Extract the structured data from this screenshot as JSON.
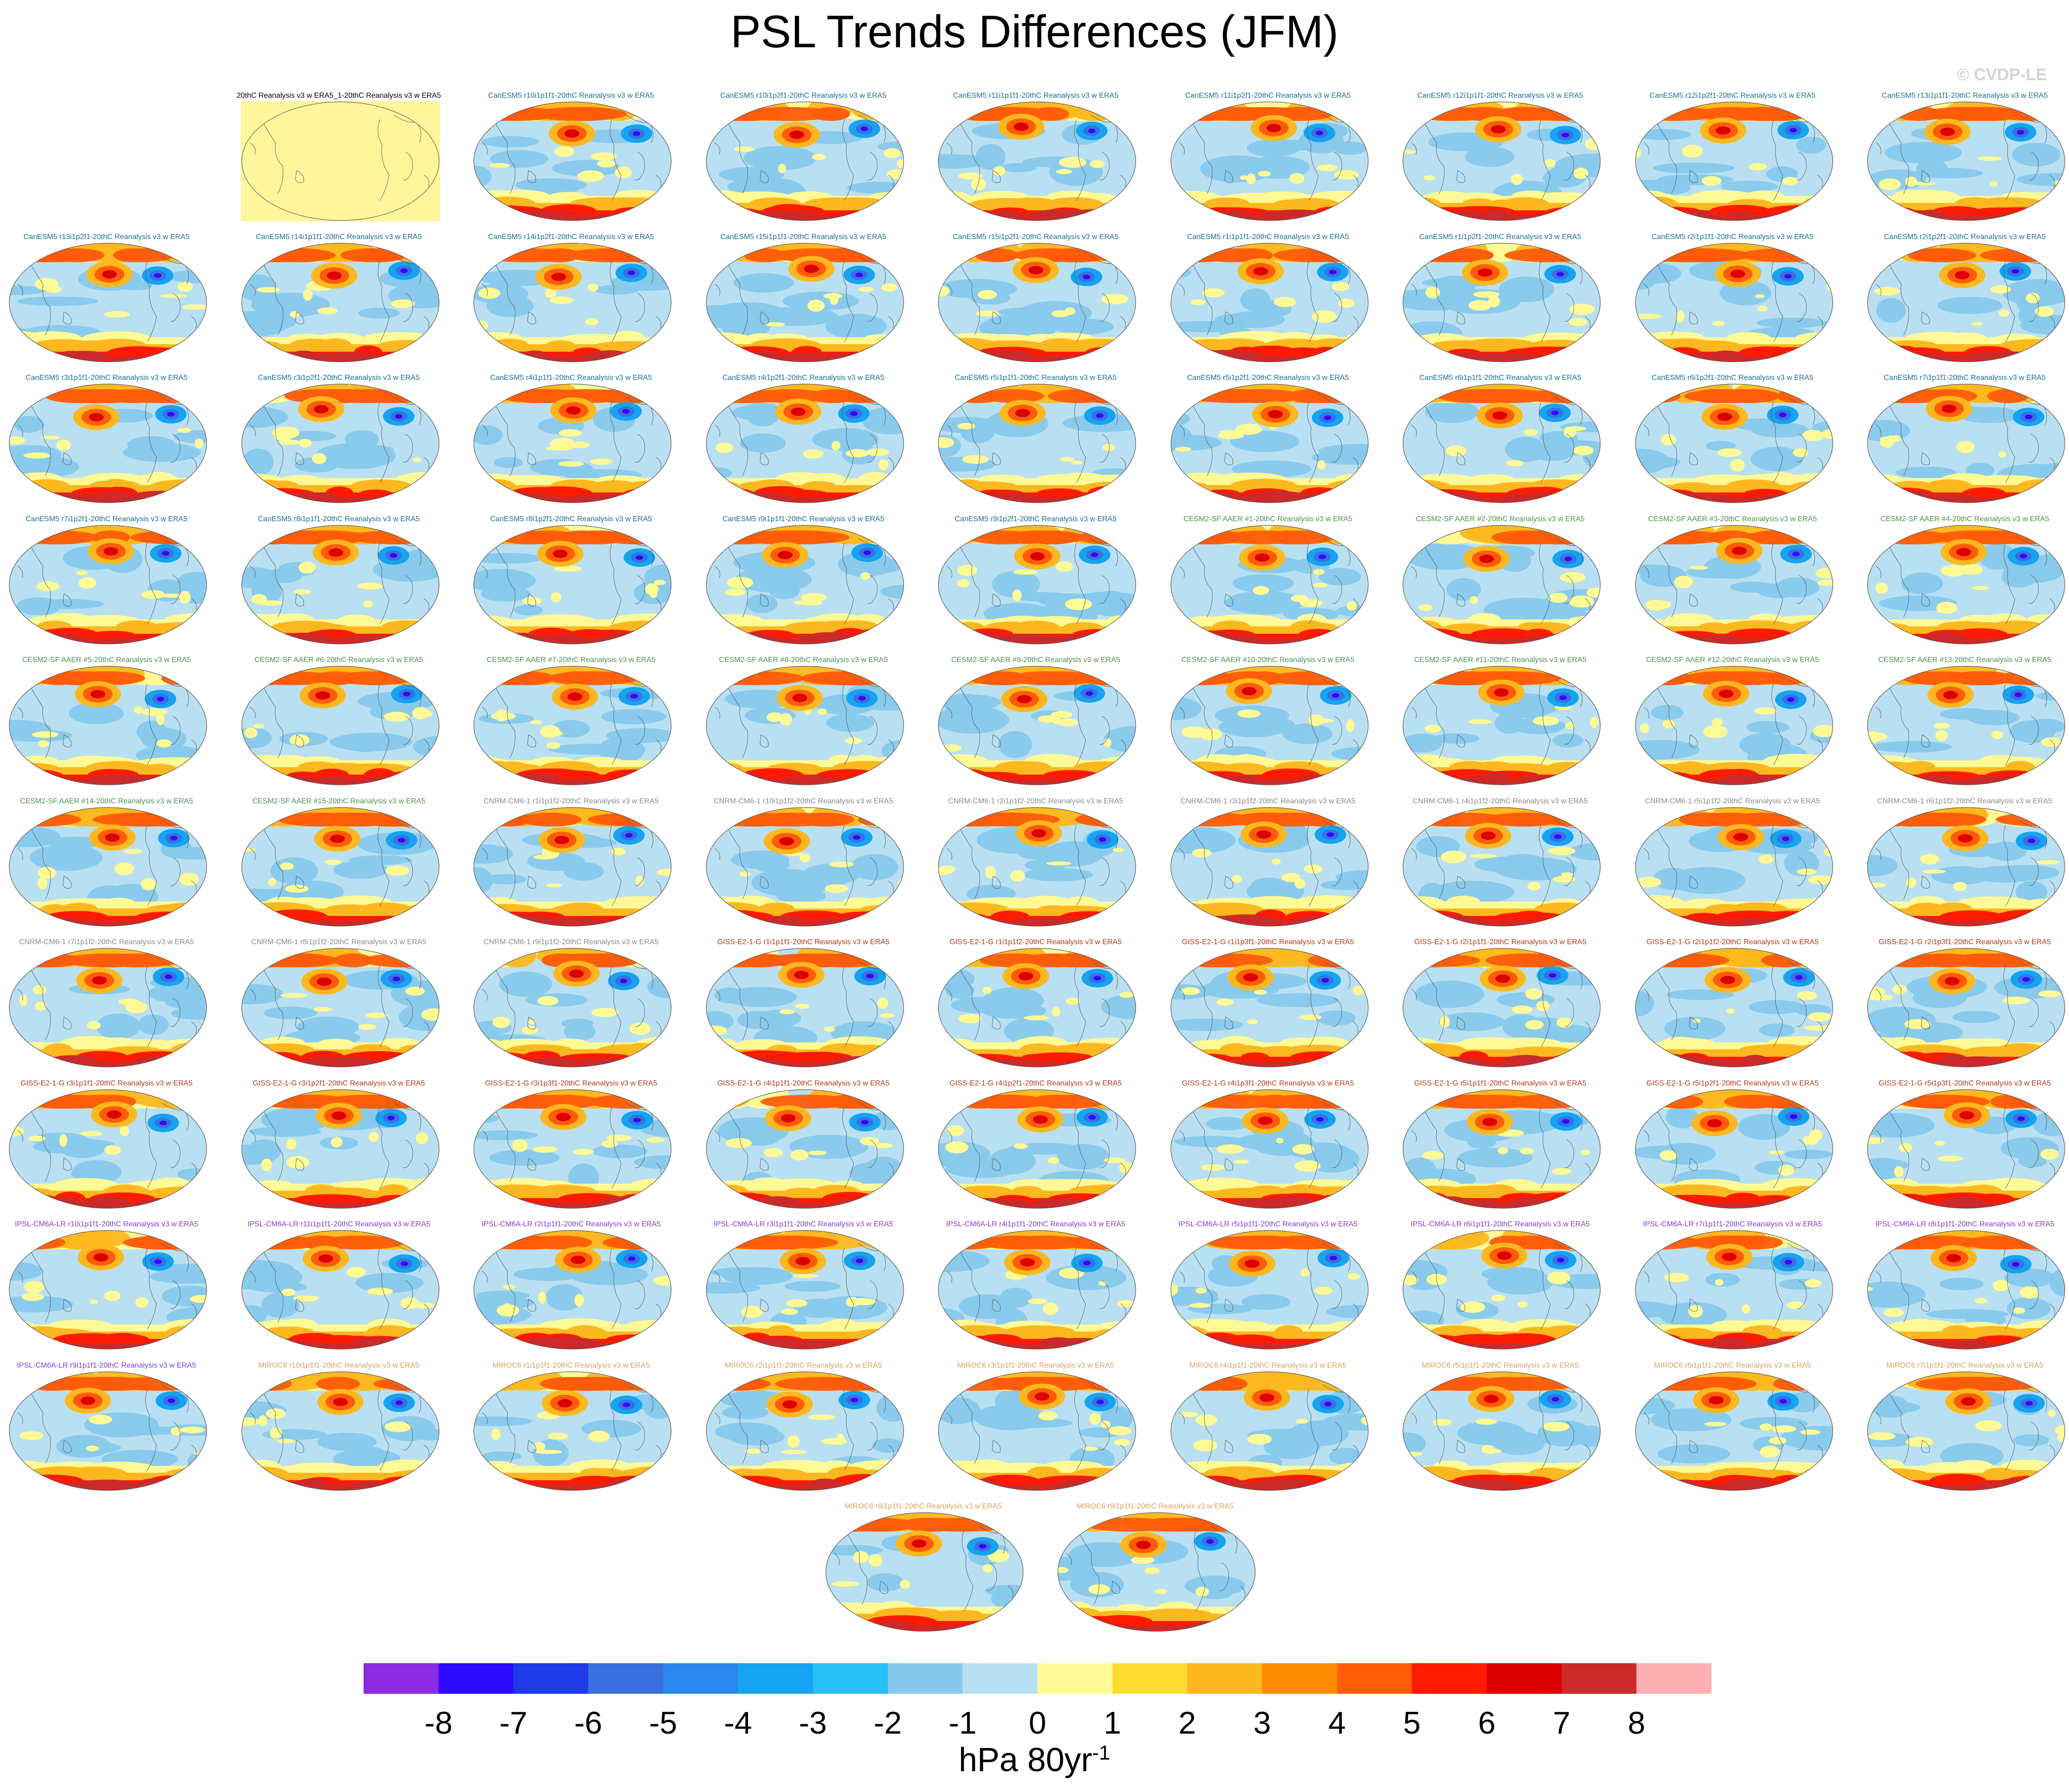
{
  "title": "PSL Trends Differences (JFM)",
  "watermark": "© CVDP-LE",
  "colorbar": {
    "units_main": "hPa 80yr",
    "units_exp": "-1",
    "colors": [
      "#8a2be2",
      "#2e0bff",
      "#1f3ae8",
      "#3b6fe0",
      "#2a88f0",
      "#15a3f2",
      "#26c0f4",
      "#87c9ec",
      "#b9e0f2",
      "#fffa96",
      "#ffdd30",
      "#fdb81f",
      "#ff8c00",
      "#ff5c0a",
      "#ff1a00",
      "#dd0000",
      "#cc2a2a",
      "#ffb0b0"
    ],
    "labels": [
      "-8",
      "-7",
      "-6",
      "-5",
      "-4",
      "-3",
      "-2",
      "-1",
      "0",
      "1",
      "2",
      "3",
      "4",
      "5",
      "6",
      "7",
      "8"
    ]
  },
  "chart_data": {
    "type": "heatmap",
    "title": "PSL Trends Differences (JFM)",
    "variable": "PSL trend difference",
    "season": "JFM",
    "units": "hPa 80yr-1",
    "contour_levels": [
      -8,
      -7,
      -6,
      -5,
      -4,
      -3,
      -2,
      -1,
      0,
      1,
      2,
      3,
      4,
      5,
      6,
      7,
      8
    ],
    "panels": [
      {
        "label": "20thC Reanalysis v3 w ERA5_1-20thC Reanalysis v3 w ERA5",
        "group": "ref"
      },
      {
        "label": "CanESM5 r10i1p1f1-20thC Reanalysis v3 w ERA5",
        "group": "canesm"
      },
      {
        "label": "CanESM5 r10i1p2f1-20thC Reanalysis v3 w ERA5",
        "group": "canesm"
      },
      {
        "label": "CanESM5 r11i1p1f1-20thC Reanalysis v3 w ERA5",
        "group": "canesm"
      },
      {
        "label": "CanESM5 r11i1p2f1-20thC Reanalysis v3 w ERA5",
        "group": "canesm"
      },
      {
        "label": "CanESM5 r12i1p1f1-20thC Reanalysis v3 w ERA5",
        "group": "canesm"
      },
      {
        "label": "CanESM5 r12i1p2f1-20thC Reanalysis v3 w ERA5",
        "group": "canesm"
      },
      {
        "label": "CanESM5 r13i1p1f1-20thC Reanalysis v3 w ERA5",
        "group": "canesm"
      },
      {
        "label": "CanESM5 r13i1p2f1-20thC Reanalysis v3 w ERA5",
        "group": "canesm"
      },
      {
        "label": "CanESM5 r14i1p1f1-20thC Reanalysis v3 w ERA5",
        "group": "canesm"
      },
      {
        "label": "CanESM5 r14i1p2f1-20thC Reanalysis v3 w ERA5",
        "group": "canesm"
      },
      {
        "label": "CanESM5 r15i1p1f1-20thC Reanalysis v3 w ERA5",
        "group": "canesm"
      },
      {
        "label": "CanESM5 r15i1p2f1-20thC Reanalysis v3 w ERA5",
        "group": "canesm"
      },
      {
        "label": "CanESM5 r1i1p1f1-20thC Reanalysis v3 w ERA5",
        "group": "canesm"
      },
      {
        "label": "CanESM5 r1i1p2f1-20thC Reanalysis v3 w ERA5",
        "group": "canesm"
      },
      {
        "label": "CanESM5 r2i1p1f1-20thC Reanalysis v3 w ERA5",
        "group": "canesm"
      },
      {
        "label": "CanESM5 r2i1p2f1-20thC Reanalysis v3 w ERA5",
        "group": "canesm"
      },
      {
        "label": "CanESM5 r3i1p1f1-20thC Reanalysis v3 w ERA5",
        "group": "canesm"
      },
      {
        "label": "CanESM5 r3i1p2f1-20thC Reanalysis v3 w ERA5",
        "group": "canesm"
      },
      {
        "label": "CanESM5 r4i1p1f1-20thC Reanalysis v3 w ERA5",
        "group": "canesm"
      },
      {
        "label": "CanESM5 r4i1p2f1-20thC Reanalysis v3 w ERA5",
        "group": "canesm"
      },
      {
        "label": "CanESM5 r5i1p1f1-20thC Reanalysis v3 w ERA5",
        "group": "canesm"
      },
      {
        "label": "CanESM5 r5i1p2f1-20thC Reanalysis v3 w ERA5",
        "group": "canesm"
      },
      {
        "label": "CanESM5 r6i1p1f1-20thC Reanalysis v3 w ERA5",
        "group": "canesm"
      },
      {
        "label": "CanESM5 r6i1p2f1-20thC Reanalysis v3 w ERA5",
        "group": "canesm"
      },
      {
        "label": "CanESM5 r7i1p1f1-20thC Reanalysis v3 w ERA5",
        "group": "canesm"
      },
      {
        "label": "CanESM5 r7i1p2f1-20thC Reanalysis v3 w ERA5",
        "group": "canesm"
      },
      {
        "label": "CanESM5 r8i1p1f1-20thC Reanalysis v3 w ERA5",
        "group": "canesm"
      },
      {
        "label": "CanESM5 r8i1p2f1-20thC Reanalysis v3 w ERA5",
        "group": "canesm"
      },
      {
        "label": "CanESM5 r9i1p1f1-20thC Reanalysis v3 w ERA5",
        "group": "canesm"
      },
      {
        "label": "CanESM5 r9i1p2f1-20thC Reanalysis v3 w ERA5",
        "group": "canesm"
      },
      {
        "label": "CESM2-SF AAER #1-20thC Reanalysis v3 w ERA5",
        "group": "cesm"
      },
      {
        "label": "CESM2-SF AAER #2-20thC Reanalysis v3 w ERA5",
        "group": "cesm"
      },
      {
        "label": "CESM2-SF AAER #3-20thC Reanalysis v3 w ERA5",
        "group": "cesm"
      },
      {
        "label": "CESM2-SF AAER #4-20thC Reanalysis v3 w ERA5",
        "group": "cesm"
      },
      {
        "label": "CESM2-SF AAER #5-20thC Reanalysis v3 w ERA5",
        "group": "cesm"
      },
      {
        "label": "CESM2-SF AAER #6-20thC Reanalysis v3 w ERA5",
        "group": "cesm"
      },
      {
        "label": "CESM2-SF AAER #7-20thC Reanalysis v3 w ERA5",
        "group": "cesm"
      },
      {
        "label": "CESM2-SF AAER #8-20thC Reanalysis v3 w ERA5",
        "group": "cesm"
      },
      {
        "label": "CESM2-SF AAER #9-20thC Reanalysis v3 w ERA5",
        "group": "cesm"
      },
      {
        "label": "CESM2-SF AAER #10-20thC Reanalysis v3 w ERA5",
        "group": "cesm"
      },
      {
        "label": "CESM2-SF AAER #11-20thC Reanalysis v3 w ERA5",
        "group": "cesm"
      },
      {
        "label": "CESM2-SF AAER #12-20thC Reanalysis v3 w ERA5",
        "group": "cesm"
      },
      {
        "label": "CESM2-SF AAER #13-20thC Reanalysis v3 w ERA5",
        "group": "cesm"
      },
      {
        "label": "CESM2-SF AAER #14-20thC Reanalysis v3 w ERA5",
        "group": "cesm"
      },
      {
        "label": "CESM2-SF AAER #15-20thC Reanalysis v3 w ERA5",
        "group": "cesm"
      },
      {
        "label": "CNRM-CM6-1 r1i1p1f2-20thC Reanalysis v3 w ERA5",
        "group": "cnrm"
      },
      {
        "label": "CNRM-CM6-1 r10i1p1f2-20thC Reanalysis v3 w ERA5",
        "group": "cnrm"
      },
      {
        "label": "CNRM-CM6-1 r2i1p1f2-20thC Reanalysis v3 w ERA5",
        "group": "cnrm"
      },
      {
        "label": "CNRM-CM6-1 r3i1p1f2-20thC Reanalysis v3 w ERA5",
        "group": "cnrm"
      },
      {
        "label": "CNRM-CM6-1 r4i1p1f2-20thC Reanalysis v3 w ERA5",
        "group": "cnrm"
      },
      {
        "label": "CNRM-CM6-1 r5i1p1f2-20thC Reanalysis v3 w ERA5",
        "group": "cnrm"
      },
      {
        "label": "CNRM-CM6-1 r6i1p1f2-20thC Reanalysis v3 w ERA5",
        "group": "cnrm"
      },
      {
        "label": "CNRM-CM6-1 r7i1p1f2-20thC Reanalysis v3 w ERA5",
        "group": "cnrm"
      },
      {
        "label": "CNRM-CM6-1 r8i1p1f2-20thC Reanalysis v3 w ERA5",
        "group": "cnrm"
      },
      {
        "label": "CNRM-CM6-1 r9i1p1f2-20thC Reanalysis v3 w ERA5",
        "group": "cnrm"
      },
      {
        "label": "GISS-E2-1-G r1i1p1f1-20thC Reanalysis v3 w ERA5",
        "group": "giss"
      },
      {
        "label": "GISS-E2-1-G r1i1p1f2-20thC Reanalysis v3 w ERA5",
        "group": "giss"
      },
      {
        "label": "GISS-E2-1-G r1i1p3f1-20thC Reanalysis v3 w ERA5",
        "group": "giss"
      },
      {
        "label": "GISS-E2-1-G r2i1p1f1-20thC Reanalysis v3 w ERA5",
        "group": "giss"
      },
      {
        "label": "GISS-E2-1-G r2i1p1f2-20thC Reanalysis v3 w ERA5",
        "group": "giss"
      },
      {
        "label": "GISS-E2-1-G r2i1p3f1-20thC Reanalysis v3 w ERA5",
        "group": "giss"
      },
      {
        "label": "GISS-E2-1-G r3i1p1f1-20thC Reanalysis v3 w ERA5",
        "group": "giss"
      },
      {
        "label": "GISS-E2-1-G r3i1p2f1-20thC Reanalysis v3 w ERA5",
        "group": "giss"
      },
      {
        "label": "GISS-E2-1-G r3i1p3f1-20thC Reanalysis v3 w ERA5",
        "group": "giss"
      },
      {
        "label": "GISS-E2-1-G r4i1p1f1-20thC Reanalysis v3 w ERA5",
        "group": "giss"
      },
      {
        "label": "GISS-E2-1-G r4i1p2f1-20thC Reanalysis v3 w ERA5",
        "group": "giss"
      },
      {
        "label": "GISS-E2-1-G r4i1p3f1-20thC Reanalysis v3 w ERA5",
        "group": "giss"
      },
      {
        "label": "GISS-E2-1-G r5i1p1f1-20thC Reanalysis v3 w ERA5",
        "group": "giss"
      },
      {
        "label": "GISS-E2-1-G r5i1p2f1-20thC Reanalysis v3 w ERA5",
        "group": "giss"
      },
      {
        "label": "GISS-E2-1-G r5i1p3f1-20thC Reanalysis v3 w ERA5",
        "group": "giss"
      },
      {
        "label": "IPSL-CM6A-LR r10i1p1f1-20thC Reanalysis v3 w ERA5",
        "group": "ipsl"
      },
      {
        "label": "IPSL-CM6A-LR r11i1p1f1-20thC Reanalysis v3 w ERA5",
        "group": "ipsl"
      },
      {
        "label": "IPSL-CM6A-LR r2i1p1f1-20thC Reanalysis v3 w ERA5",
        "group": "ipsl"
      },
      {
        "label": "IPSL-CM6A-LR r3i1p1f1-20thC Reanalysis v3 w ERA5",
        "group": "ipsl"
      },
      {
        "label": "IPSL-CM6A-LR r4i1p1f1-20thC Reanalysis v3 w ERA5",
        "group": "ipsl"
      },
      {
        "label": "IPSL-CM6A-LR r5i1p1f1-20thC Reanalysis v3 w ERA5",
        "group": "ipsl"
      },
      {
        "label": "IPSL-CM6A-LR r6i1p1f1-20thC Reanalysis v3 w ERA5",
        "group": "ipsl"
      },
      {
        "label": "IPSL-CM6A-LR r7i1p1f1-20thC Reanalysis v3 w ERA5",
        "group": "ipsl"
      },
      {
        "label": "IPSL-CM6A-LR r8i1p1f1-20thC Reanalysis v3 w ERA5",
        "group": "ipsl"
      },
      {
        "label": "IPSL-CM6A-LR r9i1p1f1-20thC Reanalysis v3 w ERA5",
        "group": "ipsl"
      },
      {
        "label": "MIROC6 r10i1p1f1-20thC Reanalysis v3 w ERA5",
        "group": "miroc"
      },
      {
        "label": "MIROC6 r1i1p1f1-20thC Reanalysis v3 w ERA5",
        "group": "miroc"
      },
      {
        "label": "MIROC6 r2i1p1f1-20thC Reanalysis v3 w ERA5",
        "group": "miroc"
      },
      {
        "label": "MIROC6 r3i1p1f1-20thC Reanalysis v3 w ERA5",
        "group": "miroc"
      },
      {
        "label": "MIROC6 r4i1p1f1-20thC Reanalysis v3 w ERA5",
        "group": "miroc"
      },
      {
        "label": "MIROC6 r5i1p1f1-20thC Reanalysis v3 w ERA5",
        "group": "miroc"
      },
      {
        "label": "MIROC6 r6i1p1f1-20thC Reanalysis v3 w ERA5",
        "group": "miroc"
      },
      {
        "label": "MIROC6 r7i1p1f1-20thC Reanalysis v3 w ERA5",
        "group": "miroc"
      },
      {
        "label": "MIROC6 r8i1p1f1-20thC Reanalysis v3 w ERA5",
        "group": "miroc"
      },
      {
        "label": "MIROC6 r9i1p1f1-20thC Reanalysis v3 w ERA5",
        "group": "miroc"
      }
    ],
    "group_colors": {
      "ref": "#000000",
      "canesm": "#1a6e8e",
      "cesm": "#4f8f4f",
      "cnrm": "#8a8a8a",
      "giss": "#b03a14",
      "ipsl": "#7a3fd0",
      "miroc": "#d8a060"
    }
  }
}
